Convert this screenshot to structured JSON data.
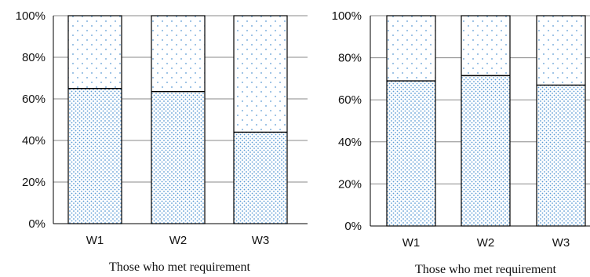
{
  "chart_data": [
    {
      "type": "bar",
      "stacked": true,
      "categories": [
        "W1",
        "W2",
        "W3"
      ],
      "series": [
        {
          "values": [
            65,
            63.5,
            44
          ],
          "pattern": "dense-dots"
        },
        {
          "values": [
            35,
            36.5,
            56
          ],
          "pattern": "sparse-dots"
        }
      ],
      "ylim": [
        0,
        100
      ],
      "yticks": [
        "0%",
        "20%",
        "40%",
        "60%",
        "80%",
        "100%"
      ],
      "xlabel": "Those who met requirement",
      "grid": true
    },
    {
      "type": "bar",
      "stacked": true,
      "categories": [
        "W1",
        "W2",
        "W3"
      ],
      "series": [
        {
          "values": [
            69,
            71.5,
            67
          ],
          "pattern": "dense-dots"
        },
        {
          "values": [
            31,
            28.5,
            33
          ],
          "pattern": "sparse-dots"
        }
      ],
      "ylim": [
        0,
        100
      ],
      "yticks": [
        "0%",
        "20%",
        "40%",
        "60%",
        "80%",
        "100%"
      ],
      "xlabel": "Those who met requirement",
      "grid": true
    }
  ],
  "colors": {
    "dot": "#5b9bd5",
    "axis": "#000000",
    "grid": "#888888"
  }
}
